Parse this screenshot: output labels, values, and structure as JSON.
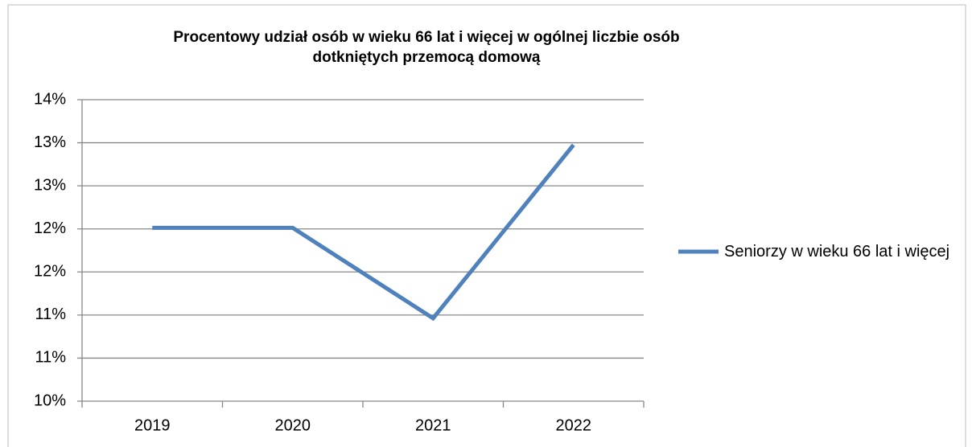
{
  "chart_data": {
    "type": "line",
    "title": "Procentowy udział osób w wieku 66 lat i więcej w ogólnej liczbie osób dotkniętych przemocą domową",
    "categories": [
      "2019",
      "2020",
      "2021",
      "2022"
    ],
    "series": [
      {
        "name": "Seniorzy w wieku 66 lat i więcej",
        "color": "#4f81bd",
        "values": [
          12.3,
          12.3,
          11.1,
          13.4
        ]
      }
    ],
    "ylim": [
      10,
      14
    ],
    "yticks": [
      {
        "value": 10,
        "label": "10%"
      },
      {
        "value": 10.5714,
        "label": "11%"
      },
      {
        "value": 11.1429,
        "label": "11%"
      },
      {
        "value": 11.7143,
        "label": "12%"
      },
      {
        "value": 12.2857,
        "label": "12%"
      },
      {
        "value": 12.8571,
        "label": "13%"
      },
      {
        "value": 13.4286,
        "label": "13%"
      },
      {
        "value": 14,
        "label": "14%"
      }
    ],
    "grid": true,
    "legend": "right"
  }
}
